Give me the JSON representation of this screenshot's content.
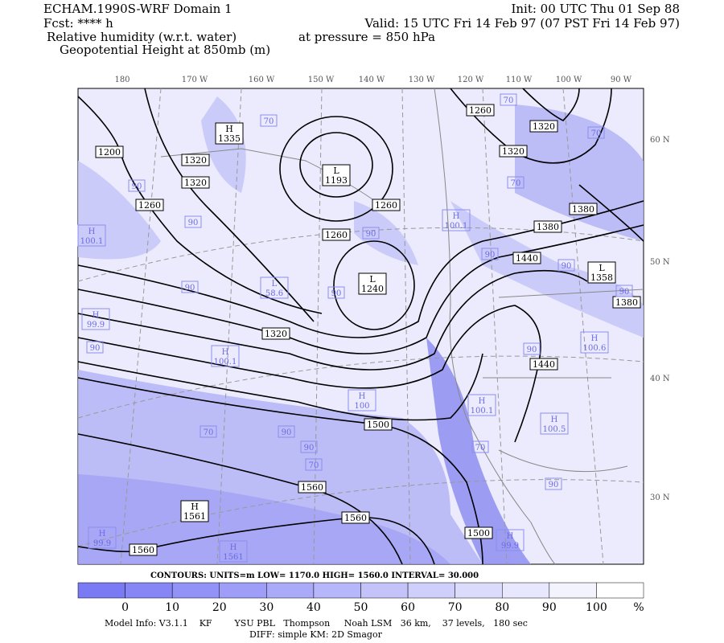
{
  "header": {
    "model": "ECHAM.1990S-WRF Domain 1",
    "fcst": "Fcst: **** h",
    "field1": "Relative humidity (w.r.t. water)",
    "field2": "Geopotential Height at 850mb (m)",
    "init": "Init: 00 UTC Thu 01 Sep 88",
    "valid": "Valid: 15 UTC Fri 14 Feb 97 (07 PST Fri 14 Feb 97)",
    "pressure": "at pressure =  850 hPa"
  },
  "map": {
    "lon_labels": [
      "180",
      "170 W",
      "160 W",
      "150 W",
      "140 W",
      "130 W",
      "120 W",
      "110 W",
      "100 W",
      "90 W"
    ],
    "lat_labels": [
      "60 N",
      "50 N",
      "40 N",
      "30 N"
    ],
    "contour_labels": [
      "1200",
      "1320",
      "1320",
      "1260",
      "1260",
      "1260",
      "1320",
      "1500",
      "1560",
      "1560",
      "1560",
      "1500",
      "1440",
      "1440",
      "1380",
      "1380",
      "1380",
      "1320",
      "1320",
      "1260"
    ],
    "extrema": [
      {
        "kind": "H",
        "value": "1335"
      },
      {
        "kind": "L",
        "value": "1193"
      },
      {
        "kind": "L",
        "value": "1240"
      },
      {
        "kind": "L",
        "value": "1358"
      },
      {
        "kind": "H",
        "value": "1561"
      }
    ],
    "rh_labels": [
      "70",
      "70",
      "70",
      "70",
      "90",
      "90",
      "90",
      "90",
      "90",
      "90",
      "70",
      "90",
      "90",
      "70",
      "70",
      "90",
      "90",
      "90",
      "90",
      "90"
    ],
    "rh_extrema": [
      {
        "kind": "H",
        "value": "100.1"
      },
      {
        "kind": "H",
        "value": "100.1"
      },
      {
        "kind": "L",
        "value": "58.6"
      },
      {
        "kind": "H",
        "value": "99.9"
      },
      {
        "kind": "H",
        "value": "100.1"
      },
      {
        "kind": "H",
        "value": "100"
      },
      {
        "kind": "H",
        "value": "100.6"
      },
      {
        "kind": "H",
        "value": "100.1"
      },
      {
        "kind": "H",
        "value": "100.5"
      },
      {
        "kind": "H",
        "value": "99.9"
      },
      {
        "kind": "H",
        "value": "99.9"
      },
      {
        "kind": "H",
        "value": "1561"
      }
    ]
  },
  "contours": {
    "text": "CONTOURS:  UNITS=m  LOW=   1170.0   HIGH=   1560.0   INTERVAL=   30.000"
  },
  "colorbar": {
    "ticks": [
      "0",
      "10",
      "20",
      "30",
      "40",
      "50",
      "60",
      "70",
      "80",
      "90",
      "100"
    ],
    "unit": "%"
  },
  "footer": {
    "line1": "Model Info: V3.1.1    KF        YSU PBL   Thompson     Noah LSM   36 km,    37 levels,   180 sec",
    "line2": "DIFF: simple KM: 2D Smagor"
  }
}
